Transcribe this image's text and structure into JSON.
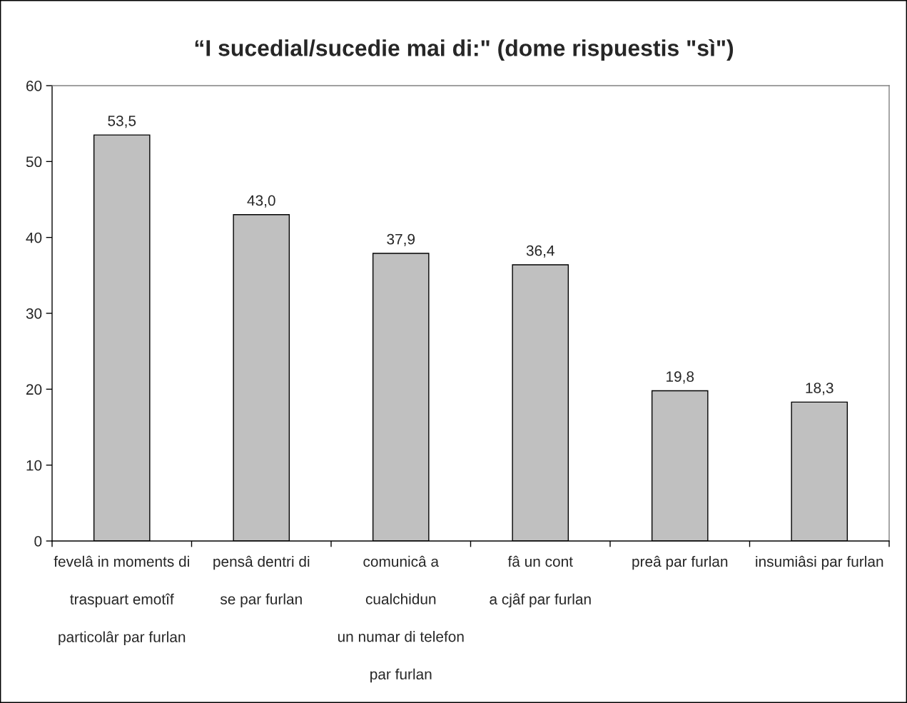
{
  "chart_data": {
    "type": "bar",
    "title": "“I sucedial/sucedie mai di:\" (dome rispuestis \"sì\")",
    "categories": [
      "fevelâ in moments di\ntraspuart emotîf\nparticolâr par furlan",
      "pensâ dentri di\nse par furlan",
      "comunicâ a\ncualchidun\nun numar di telefon\npar furlan",
      "fâ un cont\na cjâf par furlan",
      "preâ par furlan",
      "insumiâsi par furlan"
    ],
    "values": [
      53.5,
      43.0,
      37.9,
      36.4,
      19.8,
      18.3
    ],
    "value_labels": [
      "53,5",
      "43,0",
      "37,9",
      "36,4",
      "19,8",
      "18,3"
    ],
    "color": "#c0c0c0",
    "ylim": [
      0,
      60
    ],
    "yticks": [
      0,
      10,
      20,
      30,
      40,
      50,
      60
    ]
  }
}
